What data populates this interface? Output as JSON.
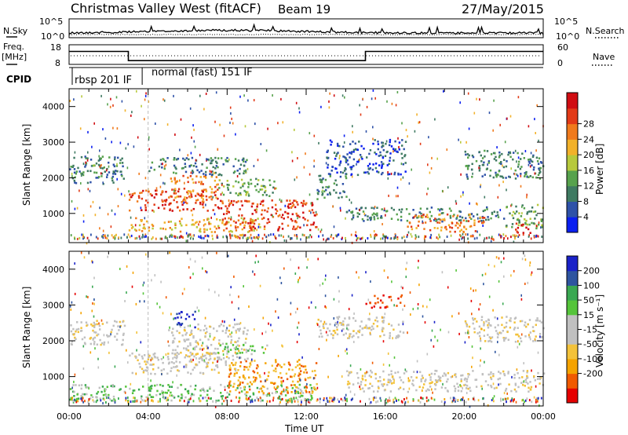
{
  "header": {
    "title": "Christmas Valley West (fitACF)",
    "beam": "Beam 19",
    "date": "27/May/2015"
  },
  "labels": {
    "nsky": "N.Sky",
    "nsearch": "N.Search",
    "freq_line1": "Freq.",
    "freq_line2": "[MHz]",
    "nave": "Nave",
    "cpid": "CPID"
  },
  "colors": {
    "power": [
      "#0a1ff0",
      "#2e52a8",
      "#3f7a62",
      "#57a24d",
      "#b7c93c",
      "#f2b12a",
      "#f07a1c",
      "#e23a17",
      "#d00d12"
    ],
    "velocity": [
      "#e50000",
      "#f05a00",
      "#f5a300",
      "#f3c23a",
      "#c0c0c0",
      "#c0c0c0",
      "#55c43a",
      "#3aa852",
      "#2e55a0",
      "#1a22c8"
    ]
  },
  "chart_data": [
    {
      "type": "line",
      "title": "N.Sky / N.Search",
      "x_range": [
        0,
        24
      ],
      "yticks_left": [
        "10^5",
        "10^0"
      ],
      "yticks_right": [
        "10^5",
        "10^0"
      ]
    },
    {
      "type": "line",
      "title": "Freq. / Nave",
      "x_range": [
        0,
        24
      ],
      "yticks_left": [
        "18",
        "8"
      ],
      "yticks_right": [
        "60",
        "0"
      ],
      "freq_steps": [
        {
          "x0": 0,
          "x1": 3.0,
          "freq_mhz": 15.5
        },
        {
          "x0": 3.0,
          "x1": 15.0,
          "freq_mhz": 10.2
        },
        {
          "x0": 15.0,
          "x1": 24,
          "freq_mhz": 15.5
        }
      ]
    },
    {
      "type": "table",
      "title": "CPID",
      "segments": [
        {
          "start": 0,
          "end": 3.7,
          "label": "rbsp 201 IF"
        },
        {
          "start": 3.7,
          "end": 24,
          "label": "normal (fast) 151 IF"
        }
      ]
    },
    {
      "type": "heatmap",
      "ylabel": "Slant Range [km]",
      "x_range": [
        0,
        24
      ],
      "y_range": [
        180,
        4500
      ],
      "yticks": [
        "1000",
        "2000",
        "3000",
        "4000"
      ],
      "colorbar_label": "Power [dB]",
      "colorbar_ticks": [
        "4",
        "8",
        "12",
        "16",
        "20",
        "24",
        "28"
      ],
      "scatter_bands": [
        {
          "x0": 0.0,
          "x1": 2.8,
          "r0": 1850,
          "r1": 2650,
          "level": 2
        },
        {
          "x0": 3.0,
          "x1": 7.5,
          "r0": 1100,
          "r1": 1700,
          "level": 7
        },
        {
          "x0": 5.0,
          "x1": 7.5,
          "r0": 1400,
          "r1": 2100,
          "level": 6
        },
        {
          "x0": 3.0,
          "x1": 10.0,
          "r0": 500,
          "r1": 900,
          "level": 5
        },
        {
          "x0": 7.5,
          "x1": 12.5,
          "r0": 550,
          "r1": 1400,
          "level": 7
        },
        {
          "x0": 4.0,
          "x1": 9.0,
          "r0": 2100,
          "r1": 2600,
          "level": 2
        },
        {
          "x0": 7.5,
          "x1": 10.5,
          "r0": 1500,
          "r1": 2000,
          "level": 3
        },
        {
          "x0": 14.0,
          "x1": 22.0,
          "r0": 800,
          "r1": 1200,
          "level": 2
        },
        {
          "x0": 17.0,
          "x1": 21.0,
          "r0": 500,
          "r1": 1000,
          "level": 6
        },
        {
          "x0": 22.0,
          "x1": 24.0,
          "r0": 600,
          "r1": 1300,
          "level": 3
        },
        {
          "x0": 22.5,
          "x1": 23.4,
          "r0": 450,
          "r1": 750,
          "level": 8
        },
        {
          "x0": 13.0,
          "x1": 17.0,
          "r0": 2100,
          "r1": 3100,
          "level": 1
        },
        {
          "x0": 20.0,
          "x1": 24.0,
          "r0": 2000,
          "r1": 2800,
          "level": 2
        },
        {
          "x0": 12.5,
          "x1": 14.0,
          "r0": 1400,
          "r1": 2100,
          "level": 2
        }
      ]
    },
    {
      "type": "heatmap",
      "ylabel": "Slant Range [km]",
      "xlabel": "Time UT",
      "x_range": [
        0,
        24
      ],
      "y_range": [
        180,
        4500
      ],
      "yticks": [
        "1000",
        "2000",
        "3000",
        "4000"
      ],
      "xticks": [
        "00:00",
        "04:00",
        "08:00",
        "12:00",
        "16:00",
        "20:00",
        "00:00"
      ],
      "colorbar_label": "Velocity [m s⁻¹]",
      "colorbar_ticks": [
        "200",
        "100",
        "50",
        "15",
        "-15",
        "-50",
        "-100",
        "-200"
      ],
      "scatter_bands": [
        {
          "x0": 0.0,
          "x1": 2.8,
          "r0": 1900,
          "r1": 2600,
          "level": 4
        },
        {
          "x0": 3.0,
          "x1": 8.5,
          "r0": 1100,
          "r1": 1700,
          "level": 4
        },
        {
          "x0": 5.0,
          "x1": 9.0,
          "r0": 1500,
          "r1": 2500,
          "level": 4
        },
        {
          "x0": 0.0,
          "x1": 12.5,
          "r0": 350,
          "r1": 800,
          "level": 6
        },
        {
          "x0": 8.0,
          "x1": 12.5,
          "r0": 550,
          "r1": 1500,
          "level": 2
        },
        {
          "x0": 14.0,
          "x1": 24.0,
          "r0": 600,
          "r1": 1200,
          "level": 4
        },
        {
          "x0": 7.5,
          "x1": 10.0,
          "r0": 1650,
          "r1": 1950,
          "level": 6
        },
        {
          "x0": 12.5,
          "x1": 17.0,
          "r0": 2100,
          "r1": 2700,
          "level": 4
        },
        {
          "x0": 20.0,
          "x1": 24.0,
          "r0": 2000,
          "r1": 2700,
          "level": 4
        },
        {
          "x0": 5.3,
          "x1": 6.4,
          "r0": 2400,
          "r1": 2850,
          "level": 9
        },
        {
          "x0": 15.0,
          "x1": 16.8,
          "r0": 2950,
          "r1": 3300,
          "level": 0
        }
      ]
    }
  ]
}
